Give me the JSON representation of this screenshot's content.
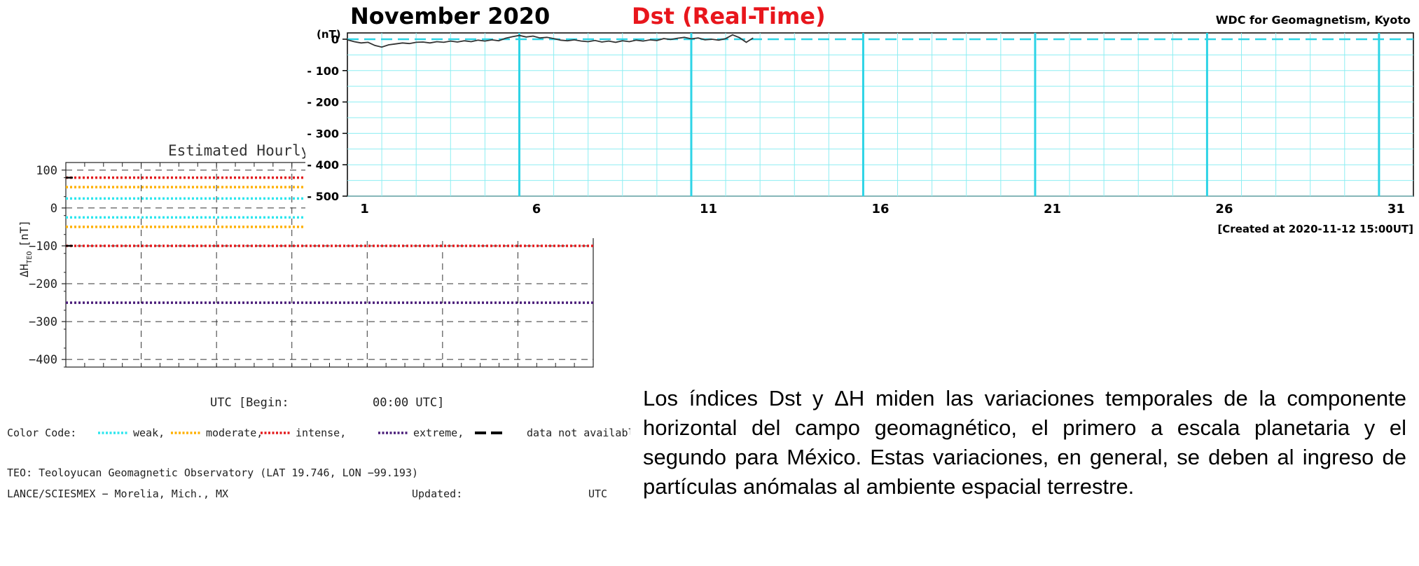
{
  "chart_data": [
    {
      "type": "line",
      "title": "Estimated Hourly-",
      "ylabel": "ΔH",
      "ylabel_sub": "TEO",
      "ylabel_unit": "[nT]",
      "yticks": [
        100,
        0,
        -100,
        -200,
        -300,
        -400
      ],
      "ylim": [
        -420,
        120
      ],
      "threshold_lines": [
        {
          "level": 80,
          "code": "intense",
          "color": "#e31a1c"
        },
        {
          "level": 55,
          "code": "moderate",
          "color": "#ffb000"
        },
        {
          "level": 25,
          "code": "weak",
          "color": "#2ee6ee"
        },
        {
          "level": -25,
          "code": "weak",
          "color": "#2ee6ee"
        },
        {
          "level": -50,
          "code": "moderate",
          "color": "#ffb000"
        },
        {
          "level": -100,
          "code": "intense",
          "color": "#e31a1c"
        },
        {
          "level": -250,
          "code": "extreme",
          "color": "#4b1f7a"
        }
      ],
      "xlabel_parts": [
        "UTC [Begin:",
        "00:00 UTC]"
      ],
      "legend": {
        "prefix": "Color Code:",
        "items": [
          {
            "label": "weak,",
            "color": "#2ee6ee",
            "style": "dotted"
          },
          {
            "label": "moderate,",
            "color": "#ffb000",
            "style": "dotted"
          },
          {
            "label": "intense,",
            "color": "#e31a1c",
            "style": "dotted"
          },
          {
            "label": "extreme,",
            "color": "#4b1f7a",
            "style": "dotted"
          },
          {
            "label": "data not available.",
            "color": "#000000",
            "style": "dashed"
          }
        ]
      },
      "footer": {
        "line1": "TEO: Teoloyucan Geomagnetic Observatory (LAT  19.746, LON −99.193)",
        "line2_left": "LANCE/SCIESMEX − Morelia, Mich., MX",
        "line2_mid": "Updated:",
        "line2_right": "UTC"
      }
    },
    {
      "type": "line",
      "title": "November  2020",
      "subtitle": "Dst (Real-Time)",
      "source": "WDC for Geomagnetism, Kyoto",
      "ylabel": "(nT)",
      "yticks": [
        0,
        -100,
        -200,
        -300,
        -400,
        -500
      ],
      "ylim": [
        -500,
        20
      ],
      "xlim": [
        0.5,
        31.5
      ],
      "xticks": [
        1,
        6,
        11,
        16,
        21,
        26,
        31
      ],
      "created": "[Created at 2020-11-12 15:00UT]",
      "series": [
        {
          "values": [
            [
              0.5,
              -2
            ],
            [
              0.7,
              -8
            ],
            [
              0.9,
              -12
            ],
            [
              1.1,
              -10
            ],
            [
              1.3,
              -20
            ],
            [
              1.5,
              -25
            ],
            [
              1.7,
              -18
            ],
            [
              1.9,
              -15
            ],
            [
              2.1,
              -12
            ],
            [
              2.3,
              -14
            ],
            [
              2.5,
              -10
            ],
            [
              2.7,
              -9
            ],
            [
              2.9,
              -12
            ],
            [
              3.1,
              -8
            ],
            [
              3.3,
              -10
            ],
            [
              3.5,
              -6
            ],
            [
              3.7,
              -9
            ],
            [
              3.9,
              -5
            ],
            [
              4.1,
              -8
            ],
            [
              4.3,
              -3
            ],
            [
              4.5,
              -6
            ],
            [
              4.7,
              -2
            ],
            [
              4.9,
              -5
            ],
            [
              5.1,
              3
            ],
            [
              5.3,
              8
            ],
            [
              5.5,
              12
            ],
            [
              5.7,
              7
            ],
            [
              5.9,
              10
            ],
            [
              6.1,
              4
            ],
            [
              6.3,
              6
            ],
            [
              6.5,
              2
            ],
            [
              6.7,
              -3
            ],
            [
              6.9,
              -5
            ],
            [
              7.1,
              -2
            ],
            [
              7.3,
              -6
            ],
            [
              7.5,
              -8
            ],
            [
              7.7,
              -4
            ],
            [
              7.9,
              -9
            ],
            [
              8.1,
              -6
            ],
            [
              8.3,
              -10
            ],
            [
              8.5,
              -5
            ],
            [
              8.7,
              -8
            ],
            [
              8.9,
              -3
            ],
            [
              9.1,
              -6
            ],
            [
              9.3,
              -2
            ],
            [
              9.5,
              -4
            ],
            [
              9.7,
              2
            ],
            [
              9.9,
              -1
            ],
            [
              10.1,
              3
            ],
            [
              10.3,
              6
            ],
            [
              10.5,
              1
            ],
            [
              10.7,
              4
            ],
            [
              10.9,
              -2
            ],
            [
              11.1,
              0
            ],
            [
              11.3,
              -3
            ],
            [
              11.5,
              2
            ],
            [
              11.7,
              14
            ],
            [
              11.9,
              5
            ],
            [
              12.1,
              -10
            ],
            [
              12.2,
              -3
            ],
            [
              12.3,
              4
            ]
          ]
        }
      ]
    }
  ],
  "description": "Los índices Dst y ΔH miden las variaciones temporales de la componente horizontal del campo geomagnético, el primero a escala planetaria y el segundo para México. Estas variaciones, en general, se deben al ingreso de partículas anómalas al ambiente espacial terrestre."
}
